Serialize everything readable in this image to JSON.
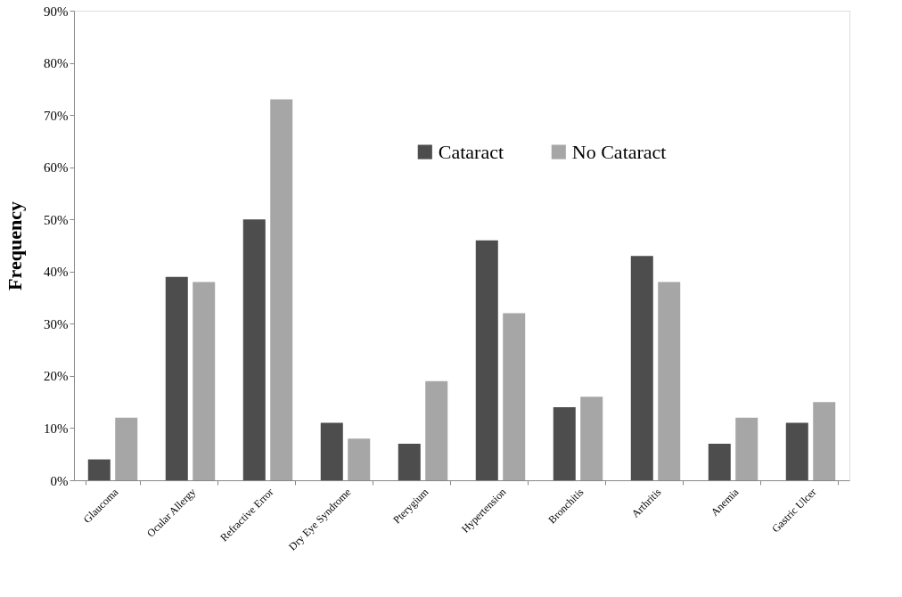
{
  "chart_data": {
    "type": "bar",
    "ylabel": "Frequency",
    "categories": [
      "Glaucoma",
      "Ocular Allergy",
      "Refractive Error",
      "Dry Eye Syndrome",
      "Pterygium",
      "Hypertension",
      "Bronchitis",
      "Arthritis",
      "Anemia",
      "Gastric Ulcer"
    ],
    "series": [
      {
        "name": "Cataract",
        "color": "#4d4d4d",
        "values": [
          4,
          39,
          50,
          11,
          7,
          46,
          14,
          43,
          7,
          11
        ]
      },
      {
        "name": "No Cataract",
        "color": "#a6a6a6",
        "values": [
          12,
          38,
          73,
          8,
          19,
          32,
          16,
          38,
          12,
          15
        ]
      }
    ],
    "ylim": [
      0,
      90
    ],
    "yticks": [
      {
        "value": 0,
        "label": "0%"
      },
      {
        "value": 10,
        "label": "10%"
      },
      {
        "value": 20,
        "label": "20%"
      },
      {
        "value": 30,
        "label": "30%"
      },
      {
        "value": 40,
        "label": "40%"
      },
      {
        "value": 50,
        "label": "50%"
      },
      {
        "value": 60,
        "label": "60%"
      },
      {
        "value": 70,
        "label": "70%"
      },
      {
        "value": 80,
        "label": "80%"
      },
      {
        "value": 90,
        "label": "90%"
      }
    ],
    "grid": false,
    "legend": "top"
  }
}
